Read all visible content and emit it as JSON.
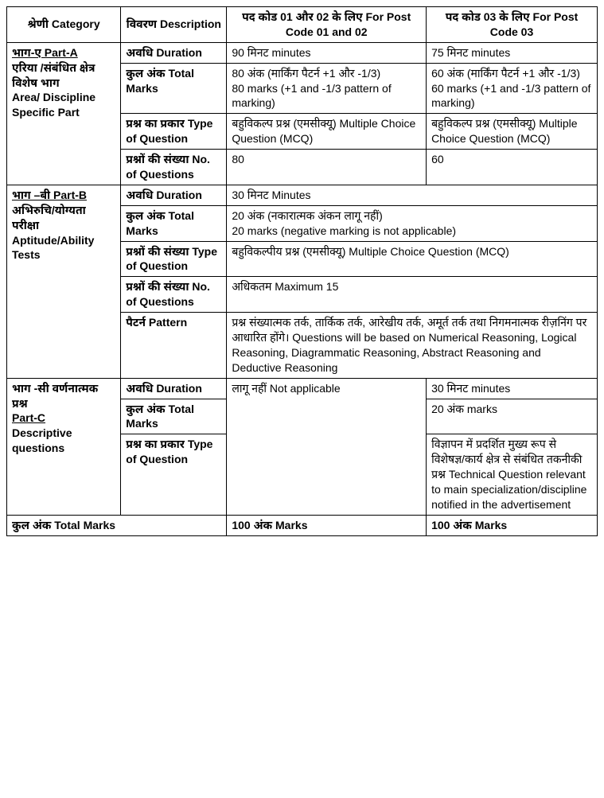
{
  "header": {
    "category": "श्रेणी Category",
    "description": "विवरण Description",
    "col3": "पद कोड 01 और 02 के लिए For Post Code 01 and 02",
    "col4": "पद कोड 03 के लिए For Post Code 03"
  },
  "partA": {
    "title_hi_u": "भाग-ए Part-A",
    "title_hi_rest": "एरिया /संबंधित क्षेत्र",
    "title_bold2": "विशेष भाग",
    "title_en": "Area/ Discipline Specific Part",
    "r1": {
      "desc": "अवधि Duration",
      "c3": "90 मिनट minutes",
      "c4": "75 मिनट minutes"
    },
    "r2": {
      "desc": "कुल अंक Total Marks",
      "c3": "80 अंक (मार्किंग पैटर्न +1 और -1/3)\n80 marks (+1 and -1/3 pattern of marking)",
      "c4": "60 अंक (मार्किंग पैटर्न +1 और -1/3)\n60 marks (+1 and -1/3 pattern of marking)"
    },
    "r3": {
      "desc": "प्रश्न का प्रकार Type of Question",
      "c3": "बहुविकल्प प्रश्न (एमसीक्यू) Multiple Choice Question (MCQ)",
      "c4": "बहुविकल्प प्रश्न (एमसीक्यू) Multiple Choice Question (MCQ)"
    },
    "r4": {
      "desc": "प्रश्नों की संख्या No. of Questions",
      "c3": "80",
      "c4": "60"
    }
  },
  "partB": {
    "title_hi_u": "भाग –बी Part-B",
    "title_bold2": "अभिरुचि/योग्यता परीक्षा",
    "title_en": "Aptitude/Ability Tests",
    "r1": {
      "desc": "अवधि Duration",
      "c34": "30 मिनट Minutes"
    },
    "r2": {
      "desc": "कुल अंक Total Marks",
      "c34": "20 अंक (नकारात्मक अंकन लागू नहीं)\n20 marks (negative marking is not applicable)"
    },
    "r3": {
      "desc": "प्रश्नों की संख्या Type of Question",
      "c34": "बहुविकल्पीय प्रश्न (एमसीक्यू) Multiple Choice Question (MCQ)"
    },
    "r4": {
      "desc": "प्रश्नों की संख्या No. of Questions",
      "c34": "अधिकतम Maximum 15"
    },
    "r5": {
      "desc": "पैटर्न Pattern",
      "c34": "प्रश्न संख्यात्मक तर्क, तार्किक तर्क, आरेखीय तर्क, अमूर्त तर्क तथा निगमनात्मक रीज़निंग पर आधारित होंगे। Questions will be based on Numerical Reasoning, Logical Reasoning, Diagrammatic Reasoning, Abstract Reasoning and Deductive Reasoning"
    }
  },
  "partC": {
    "title_hi": "भाग -सी वर्णनात्मक प्रश्न",
    "title_en_u": "Part-C",
    "title_en_rest": "Descriptive questions",
    "r1": {
      "desc": "अवधि Duration",
      "c4": "30  मिनट minutes"
    },
    "r2": {
      "desc": "कुल अंक Total Marks",
      "c4": "20 अंक marks"
    },
    "r3": {
      "desc": "प्रश्न का प्रकार Type of Question",
      "c3": "लागू नहीं Not applicable",
      "c4": "विज्ञापन में प्रदर्शित  मुख्य रूप से विशेषज्ञ/कार्य क्षेत्र से संबंधित तकनीकी प्रश्न Technical Question relevant to main specialization/discipline notified in the advertisement"
    }
  },
  "footer": {
    "label": "कुल अंक Total Marks",
    "c3": "100 अंक Marks",
    "c4": "100 अंक Marks"
  }
}
